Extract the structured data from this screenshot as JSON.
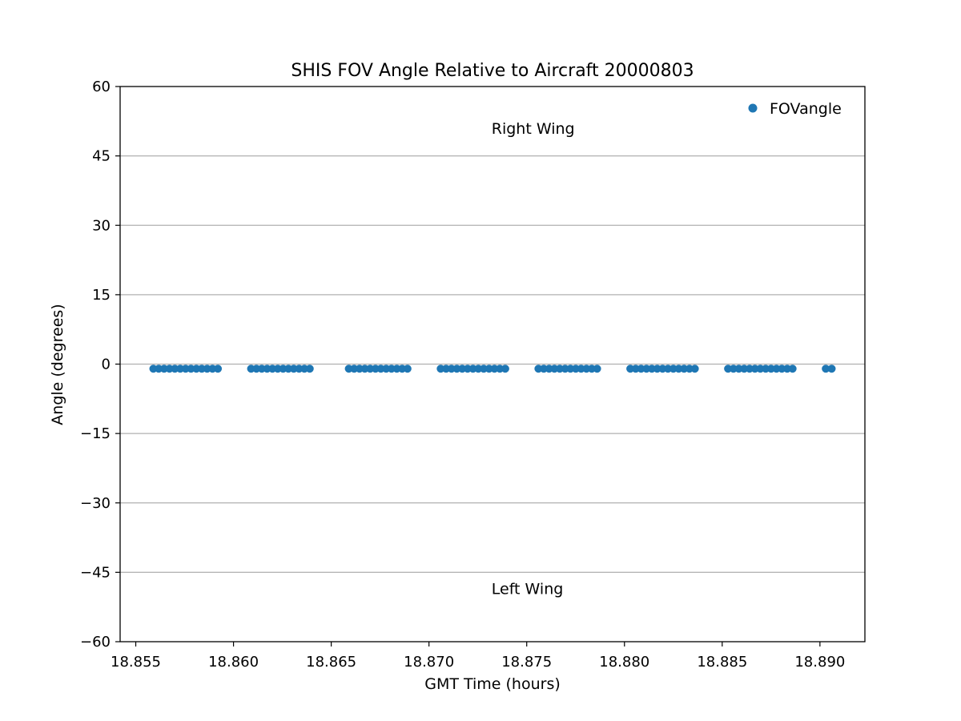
{
  "chart_data": {
    "type": "scatter",
    "title": "SHIS FOV Angle Relative to Aircraft 20000803",
    "xlabel": "GMT Time (hours)",
    "ylabel": "Angle (degrees)",
    "xlim": [
      18.8542,
      18.8923
    ],
    "ylim": [
      -60,
      60
    ],
    "xticks": [
      18.855,
      18.86,
      18.865,
      18.87,
      18.875,
      18.88,
      18.885,
      18.89
    ],
    "xtick_labels": [
      "18.855",
      "18.860",
      "18.865",
      "18.870",
      "18.875",
      "18.880",
      "18.885",
      "18.890"
    ],
    "yticks": [
      60,
      45,
      30,
      15,
      0,
      -15,
      -30,
      -45,
      -60
    ],
    "ytick_labels": [
      "60",
      "45",
      "30",
      "15",
      "0",
      "−15",
      "−30",
      "−45",
      "−60"
    ],
    "grid": "horizontal",
    "legend_position": "top-right",
    "annotations": [
      {
        "text": "Right Wing",
        "x": 18.8732,
        "y": 51
      },
      {
        "text": "Left Wing",
        "x": 18.8732,
        "y": -48.5
      }
    ],
    "series": [
      {
        "name": "FOVangle",
        "color": "#1f77b4",
        "marker": "circle",
        "clusters": [
          {
            "x_start": 18.8559,
            "x_end": 18.8592,
            "count": 13,
            "y": -1
          },
          {
            "x_start": 18.8609,
            "x_end": 18.8639,
            "count": 12,
            "y": -1
          },
          {
            "x_start": 18.8659,
            "x_end": 18.8689,
            "count": 12,
            "y": -1
          },
          {
            "x_start": 18.8706,
            "x_end": 18.8739,
            "count": 13,
            "y": -1
          },
          {
            "x_start": 18.8756,
            "x_end": 18.8786,
            "count": 12,
            "y": -1
          },
          {
            "x_start": 18.8803,
            "x_end": 18.8836,
            "count": 13,
            "y": -1
          },
          {
            "x_start": 18.8853,
            "x_end": 18.8886,
            "count": 13,
            "y": -1
          },
          {
            "x_start": 18.8903,
            "x_end": 18.8906,
            "count": 2,
            "y": -1
          }
        ]
      }
    ]
  }
}
